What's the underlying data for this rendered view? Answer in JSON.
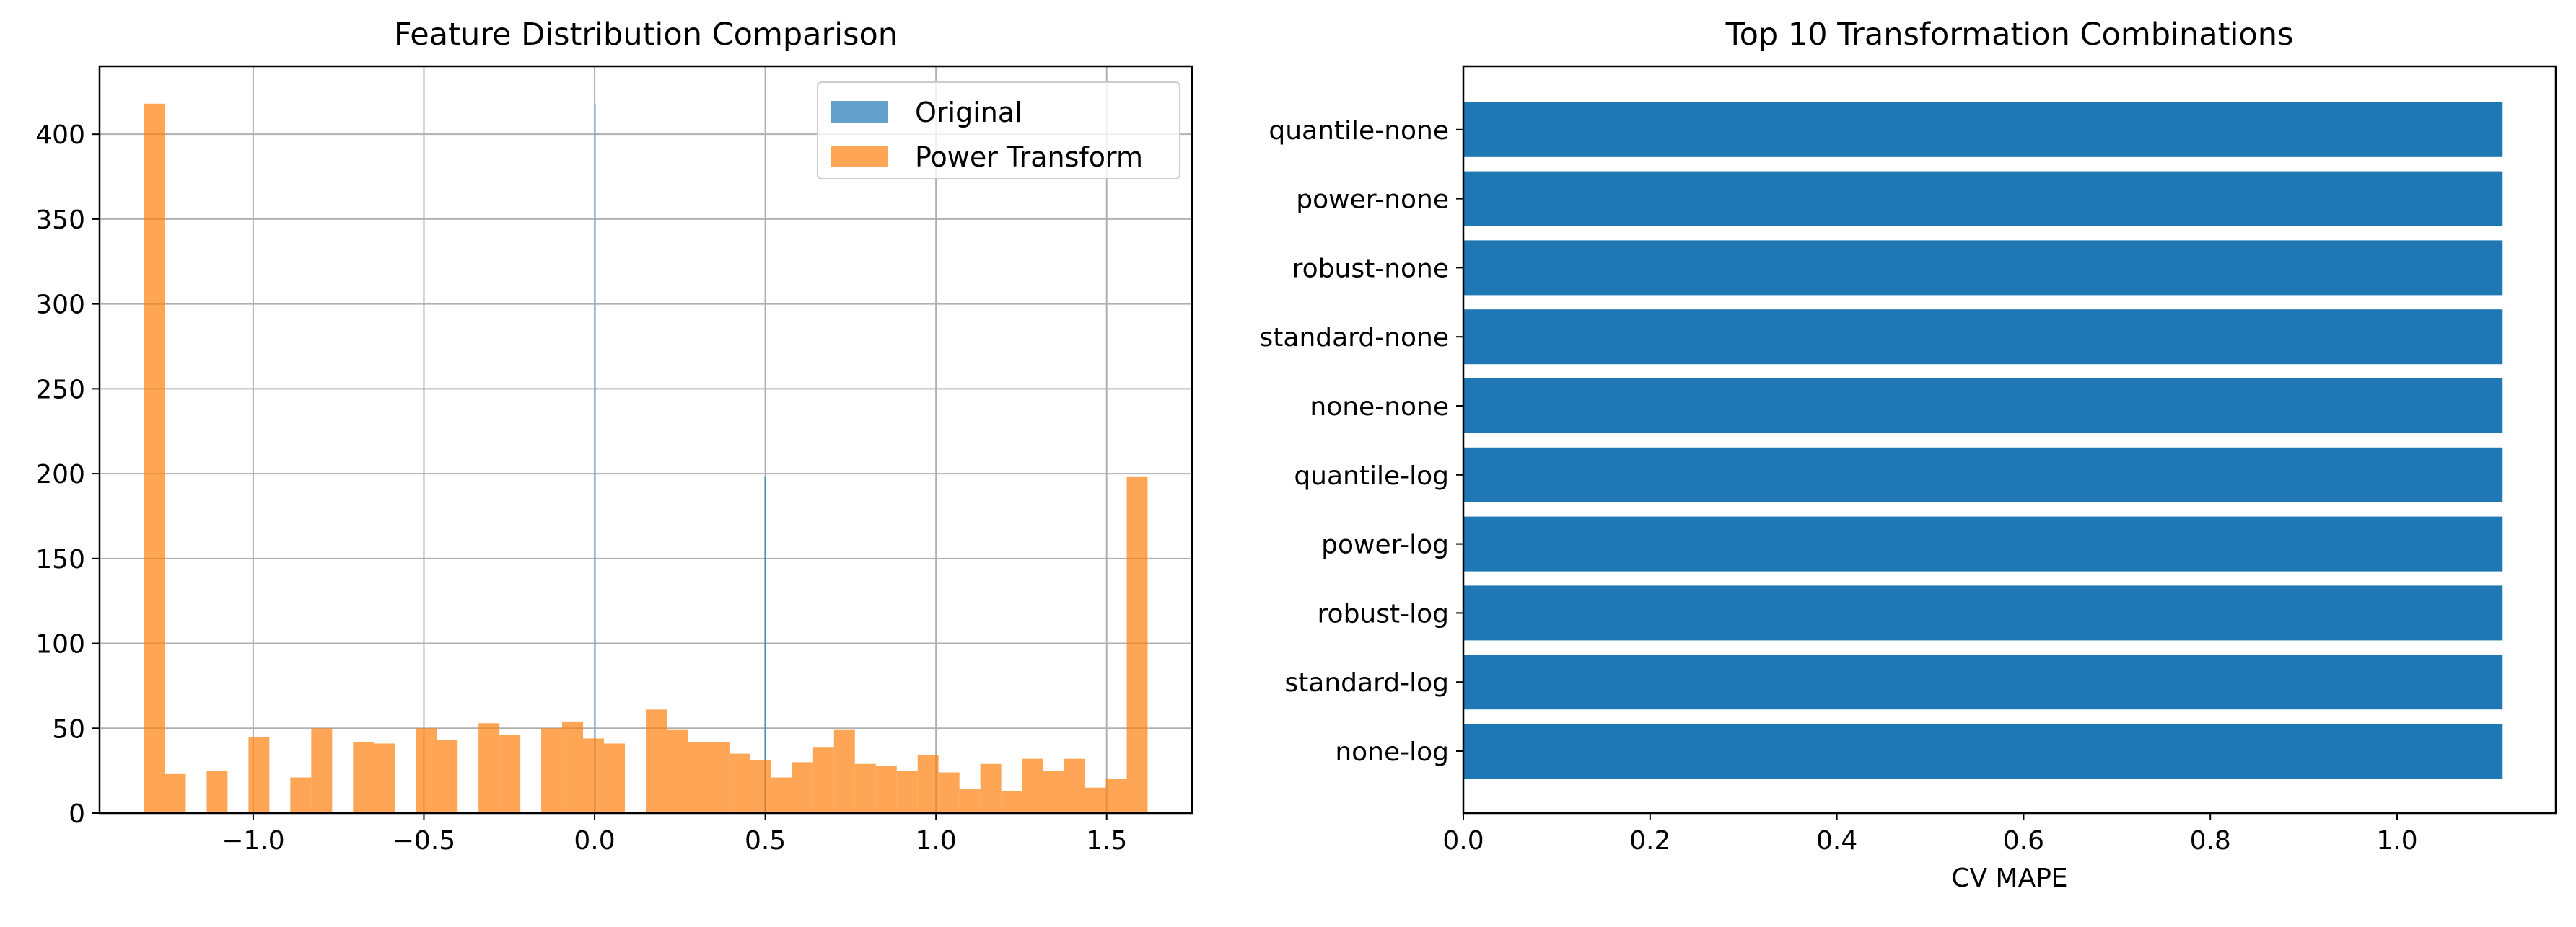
{
  "chart_data": [
    {
      "type": "histogram",
      "title": "Feature Distribution Comparison",
      "xlabel": "",
      "ylabel": "",
      "xlim": [
        -1.45,
        1.75
      ],
      "ylim": [
        0,
        440
      ],
      "xticks": [
        -1.0,
        -0.5,
        0.0,
        0.5,
        1.0,
        1.5
      ],
      "xtick_labels": [
        "−1.0",
        "−0.5",
        "0.0",
        "0.5",
        "1.0",
        "1.5"
      ],
      "yticks": [
        0,
        50,
        100,
        150,
        200,
        250,
        300,
        350,
        400
      ],
      "ytick_labels": [
        "0",
        "50",
        "100",
        "150",
        "200",
        "250",
        "300",
        "350",
        "400"
      ],
      "grid": true,
      "legend_position": "top-right",
      "series": [
        {
          "name": "Original",
          "color": "#1f77b4",
          "opacity": 0.7,
          "bin_range": [
            0.0,
            0.5
          ],
          "counts": [
            418,
            0,
            0,
            0,
            0,
            0,
            0,
            0,
            0,
            0,
            0,
            0,
            0,
            0,
            0,
            0,
            0,
            0,
            0,
            0,
            0,
            0,
            0,
            0,
            0,
            0,
            0,
            0,
            0,
            0,
            0,
            0,
            0,
            0,
            0,
            0,
            0,
            0,
            0,
            0,
            0,
            0,
            0,
            0,
            0,
            0,
            0,
            0,
            0,
            0,
            0,
            0,
            0,
            0,
            0,
            0,
            0,
            0,
            0,
            0,
            0,
            0,
            0,
            0,
            0,
            0,
            0,
            0,
            0,
            0,
            0,
            0,
            0,
            0,
            0,
            0,
            0,
            0,
            0,
            0,
            0,
            0,
            0,
            0,
            0,
            0,
            0,
            0,
            0,
            0,
            0,
            0,
            0,
            0,
            0,
            0,
            0,
            0,
            0,
            0,
            0,
            0,
            0,
            0,
            0,
            0,
            0,
            0,
            0,
            0,
            0,
            0,
            0,
            0,
            0,
            0,
            0,
            0,
            0,
            0,
            0,
            0,
            0,
            0,
            0,
            0,
            0,
            0,
            0,
            0,
            0,
            0,
            0,
            0,
            0,
            0,
            0,
            0,
            0,
            0,
            0,
            0,
            0,
            0,
            0,
            0,
            0,
            0,
            0,
            0,
            0,
            0,
            0,
            0,
            0,
            0,
            0,
            0,
            0,
            0,
            0,
            0,
            0,
            0,
            0,
            0,
            0,
            0,
            0,
            0,
            0,
            0,
            0,
            0,
            0,
            0,
            0,
            0,
            0,
            0,
            0,
            0,
            0,
            0,
            0,
            0,
            0,
            0,
            0,
            0,
            0,
            0,
            0,
            0,
            0,
            0,
            0,
            0,
            0,
            198
          ]
        },
        {
          "name": "Power Transform",
          "color": "#ff7f0e",
          "opacity": 0.7,
          "bin_range": [
            -1.32,
            1.62
          ],
          "counts": [
            418,
            23,
            0,
            25,
            0,
            45,
            0,
            21,
            50,
            0,
            42,
            41,
            0,
            50,
            43,
            0,
            53,
            46,
            0,
            50,
            54,
            44,
            41,
            0,
            61,
            49,
            42,
            42,
            35,
            31,
            21,
            30,
            39,
            49,
            29,
            28,
            25,
            34,
            24,
            14,
            29,
            13,
            32,
            25,
            32,
            15,
            20,
            198
          ]
        }
      ]
    },
    {
      "type": "bar",
      "orientation": "horizontal",
      "title": "Top 10 Transformation Combinations",
      "xlabel": "CV MAPE",
      "ylabel": "",
      "xlim": [
        0,
        1.17
      ],
      "xticks": [
        0.0,
        0.2,
        0.4,
        0.6,
        0.8,
        1.0
      ],
      "xtick_labels": [
        "0.0",
        "0.2",
        "0.4",
        "0.6",
        "0.8",
        "1.0"
      ],
      "grid": false,
      "bar_color": "#1f77b4",
      "categories": [
        "none-log",
        "standard-log",
        "robust-log",
        "power-log",
        "quantile-log",
        "none-none",
        "standard-none",
        "robust-none",
        "power-none",
        "quantile-none"
      ],
      "values": [
        1.113,
        1.113,
        1.113,
        1.113,
        1.113,
        1.113,
        1.113,
        1.113,
        1.113,
        1.113
      ]
    }
  ]
}
